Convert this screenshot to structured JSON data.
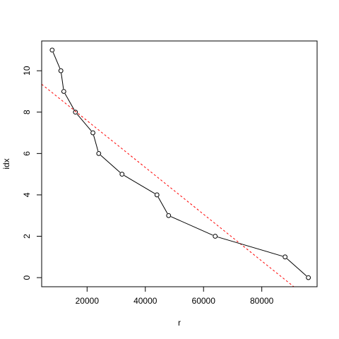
{
  "chart_data": {
    "type": "line",
    "title": "",
    "xlabel": "r",
    "ylabel": "idx",
    "xlim": [
      4400,
      99000
    ],
    "ylim": [
      -0.44,
      11.44
    ],
    "x_ticks": [
      20000,
      40000,
      60000,
      80000
    ],
    "y_ticks": [
      0,
      2,
      4,
      6,
      8,
      10
    ],
    "grid": false,
    "legend": "none",
    "series": [
      {
        "style": "line-with-open-circles",
        "color": "#000000",
        "x": [
          8000,
          11000,
          12000,
          16000,
          22000,
          24000,
          32000,
          44000,
          48000,
          64000,
          88000,
          96000
        ],
        "y": [
          11,
          10,
          9,
          8,
          7,
          6,
          5,
          4,
          3,
          2,
          1,
          0
        ]
      }
    ],
    "reference_line": {
      "style": "dashed",
      "color": "#ff0000",
      "x": [
        4400,
        91000
      ],
      "y": [
        9.35,
        -0.44
      ]
    }
  }
}
